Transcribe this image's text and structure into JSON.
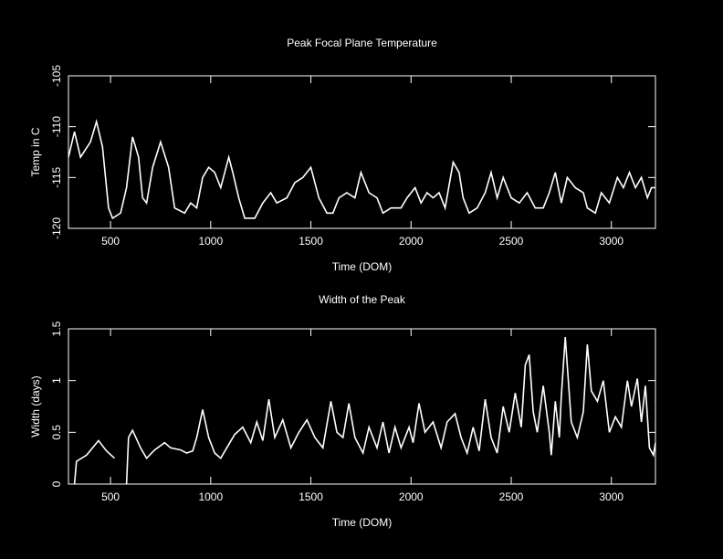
{
  "chart_data": [
    {
      "type": "line",
      "title": "Peak Focal Plane Temperature",
      "x_label": "Time (DOM)",
      "y_label": "Temp in C",
      "color": "#ffffff",
      "x": [
        290,
        320,
        350,
        400,
        430,
        460,
        490,
        510,
        550,
        580,
        610,
        640,
        660,
        680,
        710,
        750,
        790,
        820,
        870,
        900,
        930,
        960,
        990,
        1020,
        1050,
        1090,
        1110,
        1140,
        1170,
        1220,
        1260,
        1300,
        1330,
        1380,
        1420,
        1460,
        1500,
        1540,
        1580,
        1610,
        1640,
        1680,
        1720,
        1750,
        1790,
        1830,
        1860,
        1900,
        1950,
        1980,
        2020,
        2050,
        2080,
        2110,
        2140,
        2170,
        2210,
        2240,
        2260,
        2290,
        2330,
        2370,
        2400,
        2430,
        2460,
        2500,
        2540,
        2580,
        2620,
        2660,
        2690,
        2720,
        2750,
        2780,
        2820,
        2860,
        2880,
        2920,
        2950,
        2990,
        3030,
        3060,
        3090,
        3120,
        3150,
        3180,
        3200,
        3220
      ],
      "values": [
        -113,
        -110.5,
        -113,
        -111.5,
        -109.5,
        -112,
        -118,
        -119,
        -118.5,
        -116,
        -111,
        -113,
        -117,
        -117.5,
        -114,
        -111.5,
        -114,
        -118,
        -118.5,
        -117.5,
        -118,
        -115,
        -114,
        -114.5,
        -116,
        -113,
        -114.5,
        -117,
        -119,
        -119,
        -117.5,
        -116.5,
        -117.5,
        -117,
        -115.5,
        -115,
        -114,
        -117,
        -118.5,
        -118.5,
        -117,
        -116.5,
        -117,
        -114.5,
        -116.5,
        -117,
        -118.5,
        -118,
        -118,
        -117,
        -116,
        -117.5,
        -116.5,
        -117,
        -116.5,
        -118,
        -113.5,
        -114.5,
        -117,
        -118.5,
        -118,
        -116.5,
        -114.5,
        -117,
        -115,
        -117,
        -117.5,
        -116.5,
        -118,
        -118,
        -116.5,
        -114.5,
        -117.5,
        -115,
        -116,
        -116.5,
        -118,
        -118.5,
        -116.5,
        -117.5,
        -115,
        -116,
        -114.5,
        -116,
        -115,
        -117,
        -116,
        -116
      ],
      "xlim": [
        290,
        3220
      ],
      "ylim": [
        -120,
        -105
      ],
      "xticks": [
        500,
        1000,
        1500,
        2000,
        2500,
        3000
      ],
      "yticks": [
        -120,
        -115,
        -110,
        -105
      ]
    },
    {
      "type": "line",
      "title": "Width of the Peak",
      "x_label": "Time (DOM)",
      "y_label": "Width (days)",
      "color": "#ffffff",
      "x": [
        320,
        330,
        380,
        440,
        480,
        520,
        530,
        550,
        560,
        580,
        590,
        610,
        650,
        680,
        720,
        770,
        800,
        850,
        880,
        910,
        930,
        960,
        990,
        1020,
        1050,
        1080,
        1120,
        1160,
        1200,
        1230,
        1260,
        1290,
        1320,
        1360,
        1400,
        1440,
        1480,
        1520,
        1560,
        1600,
        1630,
        1660,
        1690,
        1720,
        1760,
        1790,
        1830,
        1860,
        1890,
        1920,
        1950,
        1990,
        2010,
        2040,
        2070,
        2110,
        2150,
        2180,
        2220,
        2250,
        2280,
        2310,
        2340,
        2370,
        2400,
        2430,
        2460,
        2490,
        2520,
        2550,
        2570,
        2590,
        2610,
        2630,
        2660,
        2690,
        2700,
        2720,
        2740,
        2750,
        2770,
        2800,
        2830,
        2860,
        2880,
        2900,
        2930,
        2960,
        2990,
        3020,
        3050,
        3080,
        3100,
        3130,
        3150,
        3170,
        3190,
        3210,
        3220
      ],
      "values": [
        0,
        0.22,
        0.28,
        0.42,
        0.32,
        0.25,
        null,
        0.25,
        null,
        0,
        0.45,
        0.52,
        0.35,
        0.25,
        0.33,
        0.4,
        0.35,
        0.33,
        0.3,
        0.32,
        0.45,
        0.72,
        0.45,
        0.3,
        0.25,
        0.35,
        0.48,
        0.55,
        0.4,
        0.6,
        0.42,
        0.82,
        0.45,
        0.62,
        0.35,
        0.5,
        0.62,
        0.45,
        0.35,
        0.8,
        0.5,
        0.45,
        0.78,
        0.45,
        0.3,
        0.55,
        0.35,
        0.6,
        0.3,
        0.55,
        0.35,
        0.55,
        0.4,
        0.78,
        0.5,
        0.6,
        0.35,
        0.6,
        0.68,
        0.45,
        0.3,
        0.55,
        0.32,
        0.82,
        0.45,
        0.3,
        0.75,
        0.5,
        0.88,
        0.55,
        1.15,
        1.25,
        0.7,
        0.5,
        0.95,
        0.5,
        0.28,
        0.8,
        0.45,
        0.85,
        1.42,
        0.6,
        0.45,
        0.7,
        1.35,
        0.9,
        0.8,
        1.0,
        0.5,
        0.65,
        0.55,
        1.0,
        0.75,
        1.02,
        0.6,
        0.95,
        0.35,
        0.28,
        0.4
      ],
      "xlim": [
        290,
        3220
      ],
      "ylim": [
        0,
        1.5
      ],
      "xticks": [
        500,
        1000,
        1500,
        2000,
        2500,
        3000
      ],
      "yticks": [
        0,
        0.5,
        1,
        1.5
      ]
    }
  ]
}
